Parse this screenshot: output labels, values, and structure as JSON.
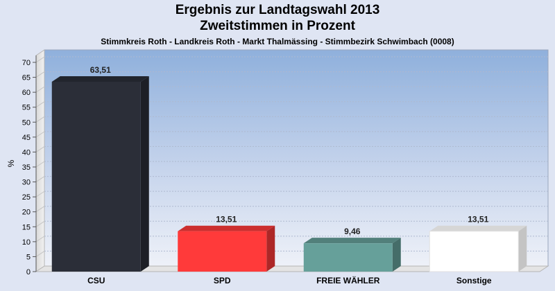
{
  "chart_data": {
    "type": "bar",
    "title": "Ergebnis zur Landtagswahl 2013",
    "subtitle": "Zweitstimmen in Prozent",
    "subtitle2": "Stimmkreis Roth - Landkreis Roth - Markt Thalmässing - Stimmbezirk Schwimbach (0008)",
    "xlabel": "",
    "ylabel": "%",
    "ylim": [
      0,
      70
    ],
    "ytick_step": 5,
    "grid": true,
    "categories": [
      "CSU",
      "SPD",
      "FREIE WÄHLER",
      "Sonstige"
    ],
    "values": [
      63.51,
      13.51,
      9.46,
      13.51
    ],
    "value_labels": [
      "63,51",
      "13,51",
      "9,46",
      "13,51"
    ],
    "colors": [
      "#2b2e38",
      "#ff3a3a",
      "#66a09a",
      "#ffffff"
    ]
  }
}
